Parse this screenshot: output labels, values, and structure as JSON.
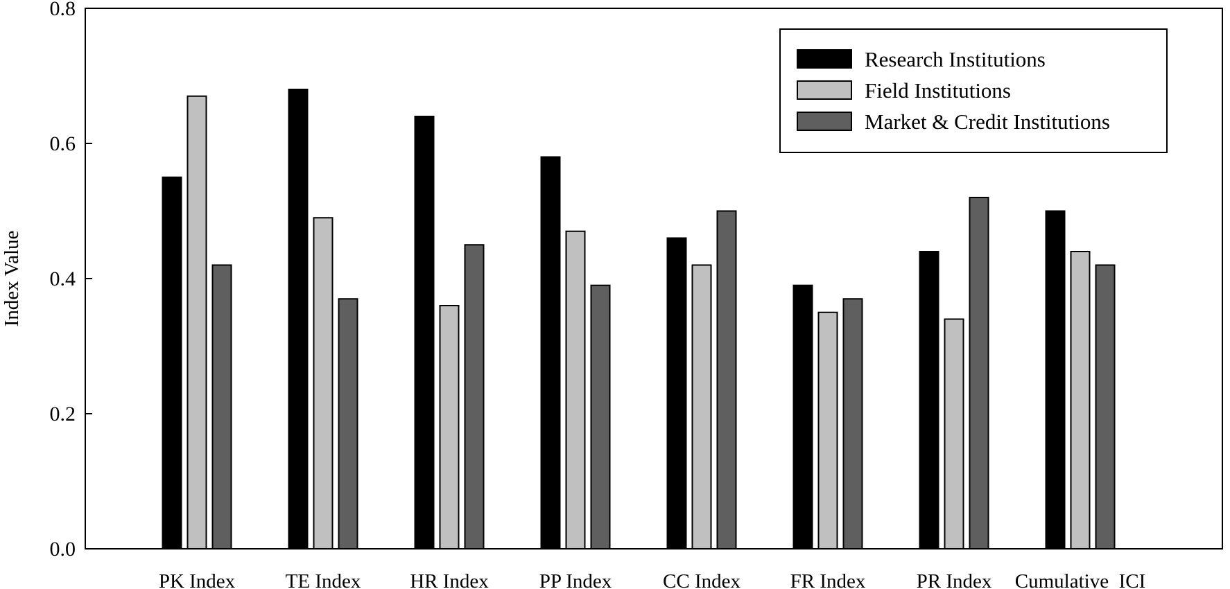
{
  "chart_data": {
    "type": "bar",
    "title": "",
    "xlabel": "",
    "ylabel": "Index Value",
    "ylim": [
      0,
      0.8
    ],
    "yticks": [
      "0.0",
      "0.2",
      "0.4",
      "0.6",
      "0.8"
    ],
    "ytick_values": [
      0,
      0.2,
      0.4,
      0.6,
      0.8
    ],
    "categories": [
      "PK Index",
      "TE Index",
      "HR Index",
      "PP Index",
      "CC Index",
      "FR Index",
      "PR Index",
      "Cumulative  ICI"
    ],
    "series": [
      {
        "name": "Research Institutions",
        "color": "#000000",
        "values": [
          0.55,
          0.68,
          0.64,
          0.58,
          0.46,
          0.39,
          0.44,
          0.5
        ]
      },
      {
        "name": "Field Institutions",
        "color": "#c0c0c0",
        "values": [
          0.67,
          0.49,
          0.36,
          0.47,
          0.42,
          0.35,
          0.34,
          0.44
        ]
      },
      {
        "name": "Market & Credit Institutions",
        "color": "#5f5f5f",
        "values": [
          0.42,
          0.37,
          0.45,
          0.39,
          0.5,
          0.37,
          0.52,
          0.42
        ]
      }
    ],
    "grid": false,
    "legend_position": "top-right"
  }
}
